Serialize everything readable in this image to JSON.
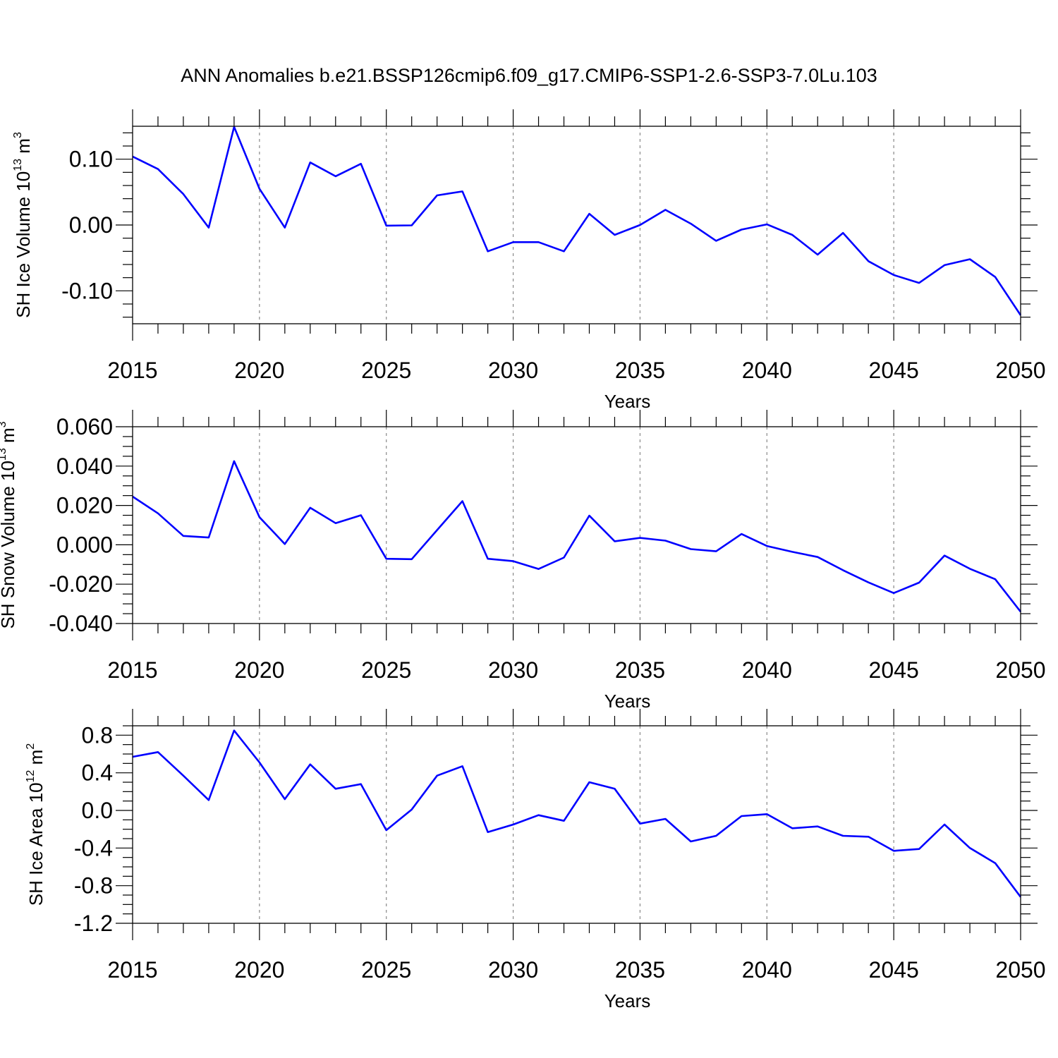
{
  "figure": {
    "title": "ANN Anomalies b.e21.BSSP126cmip6.f09_g17.CMIP6-SSP1-2.6-SSP3-7.0Lu.103"
  },
  "colors": {
    "series": "#0000ff",
    "grid": "#888888",
    "axis": "#000000"
  },
  "chart_data": [
    {
      "type": "line",
      "ylabel": {
        "base": "SH Ice Volume 10",
        "exp1": "13",
        "mid": " m",
        "exp2": "3"
      },
      "xlabel": "Years",
      "xlim": [
        2015,
        2050
      ],
      "ylim": [
        -0.15,
        0.15
      ],
      "xticks": [
        2015,
        2020,
        2025,
        2030,
        2035,
        2040,
        2045,
        2050
      ],
      "yticks": [
        0.1,
        0.0,
        -0.1
      ],
      "ytick_labels": [
        "0.10",
        "0.00",
        "-0.10"
      ],
      "yminor_step": 0.02,
      "grid": "vertical dashed at major x ticks",
      "series": [
        {
          "x": [
            2015,
            2016,
            2017,
            2018,
            2019,
            2020,
            2021,
            2022,
            2023,
            2024,
            2025,
            2026,
            2027,
            2028,
            2029,
            2030,
            2031,
            2032,
            2033,
            2034,
            2035,
            2036,
            2037,
            2038,
            2039,
            2040,
            2041,
            2042,
            2043,
            2044,
            2045,
            2046,
            2047,
            2048,
            2049,
            2050
          ],
          "values": [
            0.104,
            0.085,
            0.047,
            -0.004,
            0.149,
            0.055,
            -0.004,
            0.095,
            0.074,
            0.093,
            -0.001,
            -0.0005,
            0.045,
            0.051,
            -0.04,
            -0.026,
            -0.026,
            -0.04,
            0.017,
            -0.015,
            0.0,
            0.023,
            0.002,
            -0.024,
            -0.007,
            0.001,
            -0.015,
            -0.045,
            -0.012,
            -0.055,
            -0.076,
            -0.088,
            -0.061,
            -0.052,
            -0.079,
            -0.137
          ]
        }
      ]
    },
    {
      "type": "line",
      "ylabel": {
        "base": "SH Snow Volume 10",
        "exp1": "13",
        "mid": " m",
        "exp2": "3"
      },
      "xlabel": "Years",
      "xlim": [
        2015,
        2050
      ],
      "ylim": [
        -0.04,
        0.06
      ],
      "xticks": [
        2015,
        2020,
        2025,
        2030,
        2035,
        2040,
        2045,
        2050
      ],
      "yticks": [
        0.06,
        0.04,
        0.02,
        0.0,
        -0.02,
        -0.04
      ],
      "ytick_labels": [
        "0.060",
        "0.040",
        "0.020",
        "0.000",
        "-0.020",
        "-0.040"
      ],
      "yminor_step": 0.005,
      "grid": "vertical dashed at major x ticks",
      "series": [
        {
          "x": [
            2015,
            2016,
            2017,
            2018,
            2019,
            2020,
            2021,
            2022,
            2023,
            2024,
            2025,
            2026,
            2027,
            2028,
            2029,
            2030,
            2031,
            2032,
            2033,
            2034,
            2035,
            2036,
            2037,
            2038,
            2039,
            2040,
            2041,
            2042,
            2043,
            2044,
            2045,
            2046,
            2047,
            2048,
            2049,
            2050
          ],
          "values": [
            0.0245,
            0.016,
            0.0045,
            0.0037,
            0.0425,
            0.014,
            0.0004,
            0.0188,
            0.011,
            0.015,
            -0.0071,
            -0.0073,
            0.0075,
            0.0222,
            -0.0071,
            -0.0083,
            -0.0123,
            -0.0065,
            0.0148,
            0.0018,
            0.0035,
            0.0021,
            -0.0022,
            -0.0033,
            0.0055,
            -0.0006,
            -0.0036,
            -0.0062,
            -0.0129,
            -0.0191,
            -0.0245,
            -0.0192,
            -0.0055,
            -0.0122,
            -0.0175,
            -0.034
          ]
        }
      ]
    },
    {
      "type": "line",
      "ylabel": {
        "base": "SH Ice Area 10",
        "exp1": "12",
        "mid": " m",
        "exp2": "2"
      },
      "xlabel": "Years",
      "xlim": [
        2015,
        2050
      ],
      "ylim": [
        -1.2,
        0.9
      ],
      "xticks": [
        2015,
        2020,
        2025,
        2030,
        2035,
        2040,
        2045,
        2050
      ],
      "yticks": [
        0.8,
        0.4,
        0.0,
        -0.4,
        -0.8,
        -1.2
      ],
      "ytick_labels": [
        "0.8",
        "0.4",
        "0.0",
        "-0.4",
        "-0.8",
        "-1.2"
      ],
      "yminor_step": 0.1,
      "grid": "vertical dashed at major x ticks",
      "series": [
        {
          "x": [
            2015,
            2016,
            2017,
            2018,
            2019,
            2020,
            2021,
            2022,
            2023,
            2024,
            2025,
            2026,
            2027,
            2028,
            2029,
            2030,
            2031,
            2032,
            2033,
            2034,
            2035,
            2036,
            2037,
            2038,
            2039,
            2040,
            2041,
            2042,
            2043,
            2044,
            2045,
            2046,
            2047,
            2048,
            2049,
            2050
          ],
          "values": [
            0.57,
            0.62,
            0.37,
            0.11,
            0.85,
            0.51,
            0.12,
            0.49,
            0.23,
            0.28,
            -0.21,
            0.01,
            0.37,
            0.47,
            -0.23,
            -0.15,
            -0.05,
            -0.11,
            0.3,
            0.23,
            -0.14,
            -0.09,
            -0.33,
            -0.27,
            -0.06,
            -0.04,
            -0.19,
            -0.17,
            -0.27,
            -0.28,
            -0.43,
            -0.41,
            -0.15,
            -0.4,
            -0.56,
            -0.92
          ]
        }
      ]
    }
  ]
}
